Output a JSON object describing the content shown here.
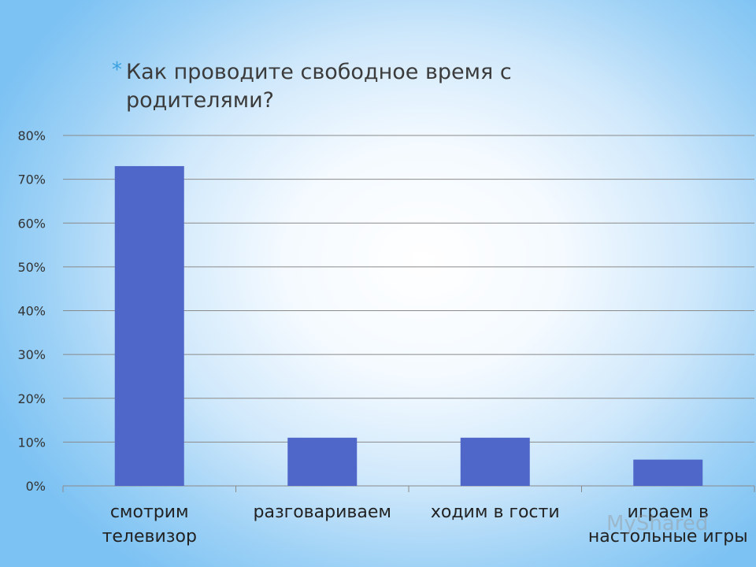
{
  "slide": {
    "bullet": "*",
    "title": "Как проводите свободное время с родителями?"
  },
  "watermark": "MyShared",
  "chart_data": {
    "type": "bar",
    "categories": [
      [
        "смотрим",
        "телевизор"
      ],
      [
        "разговариваем"
      ],
      [
        "ходим в гости"
      ],
      [
        "играем в",
        "настольные игры"
      ]
    ],
    "values": [
      73,
      11,
      11,
      6
    ],
    "unit": "%",
    "ylim": [
      0,
      80
    ],
    "yticks": [
      "0%",
      "10%",
      "20%",
      "30%",
      "40%",
      "50%",
      "60%",
      "70%",
      "80%"
    ],
    "grid": true,
    "legend": "none",
    "bar_color": "#4f67c9",
    "grid_color": "#8a8a8a"
  }
}
